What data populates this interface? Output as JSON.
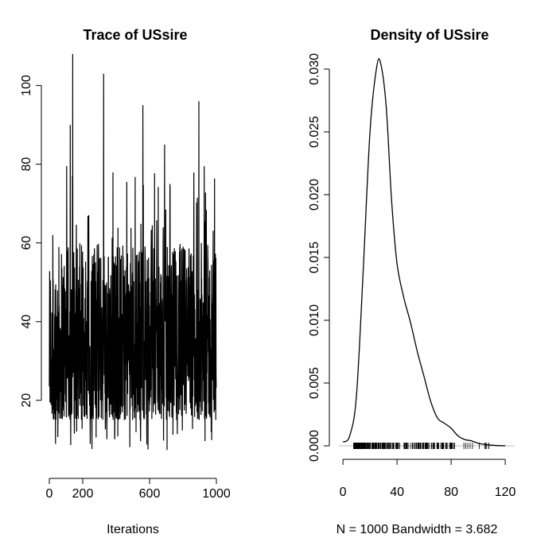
{
  "chart_data": [
    {
      "type": "line",
      "title": "Trace of USsire",
      "xlabel": "Iterations",
      "ylabel": "",
      "xlim": [
        0,
        1000
      ],
      "ylim": [
        5,
        108
      ],
      "x_ticks": [
        "0",
        "200",
        "600",
        "1000"
      ],
      "x_tick_values": [
        0,
        200,
        600,
        1000
      ],
      "y_ticks": [
        "20",
        "40",
        "60",
        "80",
        "100"
      ],
      "y_tick_values": [
        20,
        40,
        60,
        80,
        100
      ],
      "series_summary": {
        "n_iterations": 1000,
        "typical_range": [
          15,
          55
        ],
        "min_approx": 5,
        "max_approx": 108,
        "notable_spikes": [
          {
            "x": 140,
            "y": 108
          },
          {
            "x": 325,
            "y": 103
          },
          {
            "x": 560,
            "y": 95
          },
          {
            "x": 895,
            "y": 96
          },
          {
            "x": 125,
            "y": 90
          },
          {
            "x": 690,
            "y": 85
          }
        ]
      }
    },
    {
      "type": "line",
      "title": "Density of USsire",
      "xlabel": "N = 1000   Bandwidth = 3.682",
      "ylabel": "",
      "xlim": [
        -3,
        127
      ],
      "ylim": [
        0,
        0.0312
      ],
      "x_ticks": [
        "0",
        "40",
        "80",
        "120"
      ],
      "x_tick_values": [
        0,
        40,
        80,
        120
      ],
      "y_ticks": [
        "0.000",
        "0.005",
        "0.010",
        "0.015",
        "0.020",
        "0.025",
        "0.030"
      ],
      "y_tick_values": [
        0.0,
        0.005,
        0.01,
        0.015,
        0.02,
        0.025,
        0.03
      ],
      "density_points": {
        "x": [
          0,
          5,
          10,
          15,
          20,
          25,
          28,
          32,
          36,
          40,
          45,
          50,
          55,
          60,
          65,
          70,
          75,
          80,
          85,
          90,
          95,
          100,
          105,
          110,
          115,
          120
        ],
        "y": [
          0.0003,
          0.0008,
          0.004,
          0.014,
          0.025,
          0.0302,
          0.0304,
          0.027,
          0.0195,
          0.0145,
          0.0118,
          0.0098,
          0.0075,
          0.0055,
          0.0035,
          0.0022,
          0.0018,
          0.0014,
          0.0008,
          0.0005,
          0.0004,
          0.0002,
          0.0001,
          5e-05,
          2e-05,
          0.0
        ]
      },
      "rug": true
    }
  ]
}
